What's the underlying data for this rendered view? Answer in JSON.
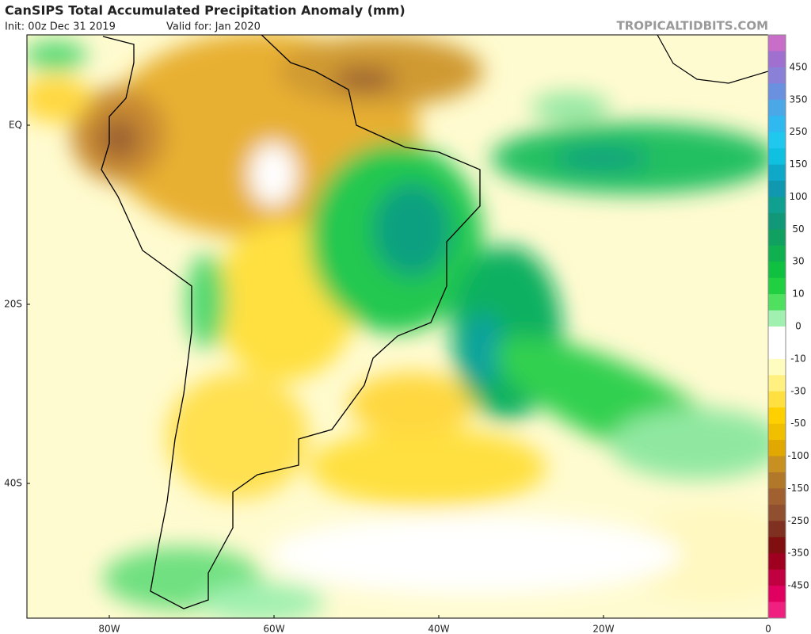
{
  "header": {
    "title": "CanSIPS Total Accumulated Precipitation Anomaly (mm)",
    "init": "Init: 00z Dec 31 2019",
    "valid": "Valid for: Jan 2020",
    "site": "TROPICALTIDBITS.COM"
  },
  "map": {
    "lat_labels": [
      "EQ",
      "20S",
      "40S"
    ],
    "lon_labels": [
      "80W",
      "60W",
      "40W",
      "20W",
      "0"
    ]
  },
  "colorbar": {
    "levels": [
      450,
      350,
      250,
      150,
      100,
      50,
      30,
      10,
      0,
      -10,
      -30,
      -50,
      -100,
      -150,
      -250,
      -350,
      -450
    ],
    "colors": [
      "#c86ec8",
      "#a070d0",
      "#8a80d8",
      "#6a90e0",
      "#4aa8e8",
      "#30b8f0",
      "#20c8f0",
      "#10c0e0",
      "#10a8c8",
      "#1098b0",
      "#10a090",
      "#109878",
      "#10a060",
      "#10b050",
      "#10c040",
      "#20d040",
      "#50e060",
      "#a0f0b0",
      "#ffffff",
      "#ffffff",
      "#fffcc0",
      "#fff080",
      "#ffe040",
      "#ffd000",
      "#f0c000",
      "#e0a800",
      "#c89020",
      "#b07828",
      "#a06030",
      "#905030",
      "#803020",
      "#801010",
      "#a00020",
      "#c00040",
      "#e00060",
      "#f02080"
    ]
  }
}
